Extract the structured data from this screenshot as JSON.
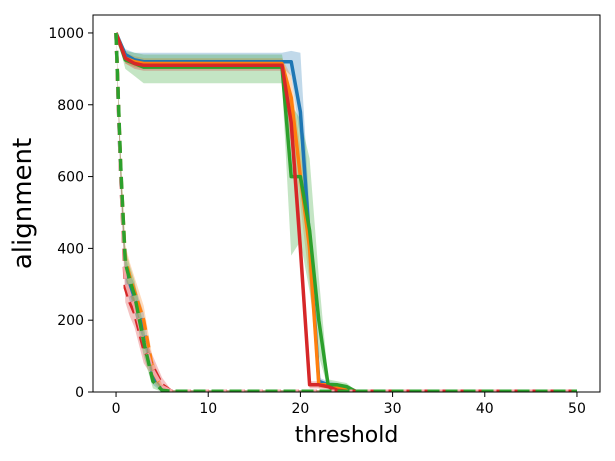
{
  "chart_data": {
    "type": "line",
    "title": "",
    "xlabel": "threshold",
    "ylabel": "alignment",
    "xlim": [
      -2.5,
      52.5
    ],
    "ylim": [
      0,
      1050
    ],
    "xticks": [
      0,
      10,
      20,
      30,
      40,
      50
    ],
    "yticks": [
      0,
      200,
      400,
      600,
      800,
      1000
    ],
    "grid": false,
    "legend": false,
    "colors": {
      "blue": "#1f77b4",
      "orange": "#ff7f0e",
      "green": "#2ca02c",
      "red": "#d62728",
      "lightred": "#f4a6a6"
    },
    "series": [
      {
        "style": "solid",
        "color": "#1f77b4",
        "band": true,
        "x": [
          0,
          1,
          2,
          3,
          5,
          10,
          15,
          18,
          19,
          20,
          21,
          22,
          23,
          24,
          25,
          26,
          30,
          40,
          50
        ],
        "y": [
          1000,
          940,
          925,
          920,
          920,
          920,
          920,
          920,
          920,
          780,
          420,
          30,
          20,
          15,
          10,
          2,
          2,
          2,
          2
        ],
        "lower": [
          1000,
          925,
          910,
          905,
          905,
          905,
          905,
          905,
          880,
          700,
          320,
          15,
          10,
          8,
          5,
          0,
          0,
          0,
          0
        ],
        "upper": [
          1000,
          955,
          945,
          945,
          945,
          945,
          945,
          945,
          950,
          945,
          500,
          40,
          30,
          25,
          15,
          5,
          5,
          5,
          5
        ]
      },
      {
        "style": "solid",
        "color": "#ff7f0e",
        "band": true,
        "x": [
          0,
          1,
          2,
          3,
          5,
          10,
          15,
          18,
          19,
          20,
          21,
          22,
          23,
          24,
          25,
          26,
          30,
          40,
          50
        ],
        "y": [
          1000,
          930,
          920,
          915,
          915,
          915,
          915,
          915,
          820,
          600,
          400,
          20,
          20,
          15,
          5,
          2,
          2,
          2,
          2
        ],
        "lower": [
          1000,
          915,
          905,
          900,
          900,
          900,
          900,
          900,
          760,
          520,
          300,
          10,
          10,
          5,
          0,
          0,
          0,
          0,
          0
        ],
        "upper": [
          1000,
          945,
          935,
          930,
          930,
          930,
          930,
          930,
          880,
          680,
          460,
          30,
          25,
          20,
          10,
          5,
          5,
          5,
          5
        ]
      },
      {
        "style": "solid",
        "color": "#2ca02c",
        "band": true,
        "x": [
          0,
          1,
          2,
          3,
          5,
          10,
          15,
          18,
          19,
          20,
          21,
          22,
          23,
          24,
          25,
          26,
          30,
          40,
          50
        ],
        "y": [
          1000,
          925,
          915,
          905,
          905,
          905,
          905,
          905,
          600,
          600,
          450,
          200,
          20,
          20,
          15,
          2,
          2,
          2,
          2
        ],
        "lower": [
          1000,
          900,
          880,
          860,
          860,
          860,
          860,
          860,
          380,
          420,
          280,
          100,
          10,
          10,
          8,
          0,
          0,
          0,
          0
        ],
        "upper": [
          1000,
          950,
          945,
          940,
          940,
          940,
          940,
          940,
          800,
          760,
          650,
          320,
          35,
          30,
          25,
          5,
          5,
          5,
          5
        ]
      },
      {
        "style": "solid",
        "color": "#d62728",
        "band": true,
        "x": [
          0,
          1,
          2,
          3,
          5,
          10,
          15,
          18,
          19,
          20,
          21,
          22,
          23,
          24,
          25,
          26,
          30,
          40,
          50
        ],
        "y": [
          1000,
          930,
          915,
          910,
          910,
          910,
          910,
          910,
          750,
          400,
          20,
          20,
          15,
          5,
          2,
          2,
          2,
          2,
          2
        ],
        "lower": [
          1000,
          915,
          900,
          895,
          895,
          895,
          895,
          895,
          680,
          320,
          10,
          10,
          8,
          0,
          0,
          0,
          0,
          0,
          0
        ],
        "upper": [
          1000,
          945,
          930,
          925,
          925,
          925,
          925,
          925,
          820,
          480,
          30,
          30,
          25,
          10,
          5,
          5,
          5,
          5,
          5
        ]
      },
      {
        "style": "dashed",
        "color": "#1f77b4",
        "band": true,
        "x": [
          0,
          0.5,
          1,
          1.5,
          2,
          3,
          4,
          5,
          6,
          10,
          20,
          30,
          40,
          50
        ],
        "y": [
          1000,
          600,
          340,
          290,
          260,
          180,
          40,
          5,
          2,
          2,
          2,
          2,
          2,
          2
        ],
        "lower": [
          1000,
          560,
          300,
          250,
          220,
          140,
          20,
          0,
          0,
          0,
          0,
          0,
          0,
          0
        ],
        "upper": [
          1000,
          640,
          380,
          330,
          300,
          220,
          60,
          10,
          5,
          5,
          5,
          5,
          5,
          5
        ]
      },
      {
        "style": "dashed",
        "color": "#ff7f0e",
        "band": true,
        "x": [
          0,
          0.5,
          1,
          1.5,
          2,
          3,
          4,
          5,
          6,
          10,
          20,
          30,
          40,
          50
        ],
        "y": [
          1000,
          620,
          370,
          320,
          280,
          200,
          60,
          10,
          2,
          2,
          2,
          2,
          2,
          2
        ],
        "lower": [
          1000,
          580,
          330,
          280,
          240,
          160,
          30,
          0,
          0,
          0,
          0,
          0,
          0,
          0
        ],
        "upper": [
          1000,
          660,
          410,
          360,
          320,
          240,
          90,
          20,
          5,
          5,
          5,
          5,
          5,
          5
        ]
      },
      {
        "style": "dashed",
        "color": "#d62728",
        "band": true,
        "x": [
          0,
          0.5,
          1,
          1.5,
          2,
          3,
          4,
          5,
          6,
          10,
          20,
          30,
          40,
          50
        ],
        "y": [
          1000,
          610,
          290,
          250,
          220,
          120,
          70,
          20,
          2,
          2,
          2,
          2,
          2,
          2
        ],
        "lower": [
          1000,
          570,
          250,
          210,
          180,
          80,
          40,
          5,
          0,
          0,
          0,
          0,
          0,
          0
        ],
        "upper": [
          1000,
          650,
          330,
          290,
          260,
          160,
          100,
          40,
          5,
          5,
          5,
          5,
          5,
          5
        ]
      },
      {
        "style": "dashed",
        "color": "#f4a6a6",
        "band": false,
        "x": [
          0,
          0.5,
          1,
          1.5,
          2,
          3,
          4,
          5,
          6,
          10,
          20,
          30,
          40,
          50
        ],
        "y": [
          1000,
          600,
          310,
          270,
          240,
          140,
          60,
          15,
          2,
          2,
          2,
          2,
          2,
          2
        ]
      },
      {
        "style": "dashed",
        "color": "#2ca02c",
        "band": true,
        "x": [
          0,
          0.5,
          1,
          1.5,
          2,
          3,
          4,
          5,
          6,
          10,
          20,
          30,
          40,
          50
        ],
        "y": [
          1000,
          630,
          360,
          310,
          270,
          140,
          30,
          5,
          2,
          2,
          2,
          2,
          2,
          2
        ],
        "lower": [
          1000,
          590,
          320,
          270,
          230,
          100,
          10,
          0,
          0,
          0,
          0,
          0,
          0,
          0
        ],
        "upper": [
          1000,
          670,
          400,
          350,
          310,
          180,
          50,
          10,
          5,
          5,
          5,
          5,
          5,
          5
        ]
      }
    ]
  }
}
